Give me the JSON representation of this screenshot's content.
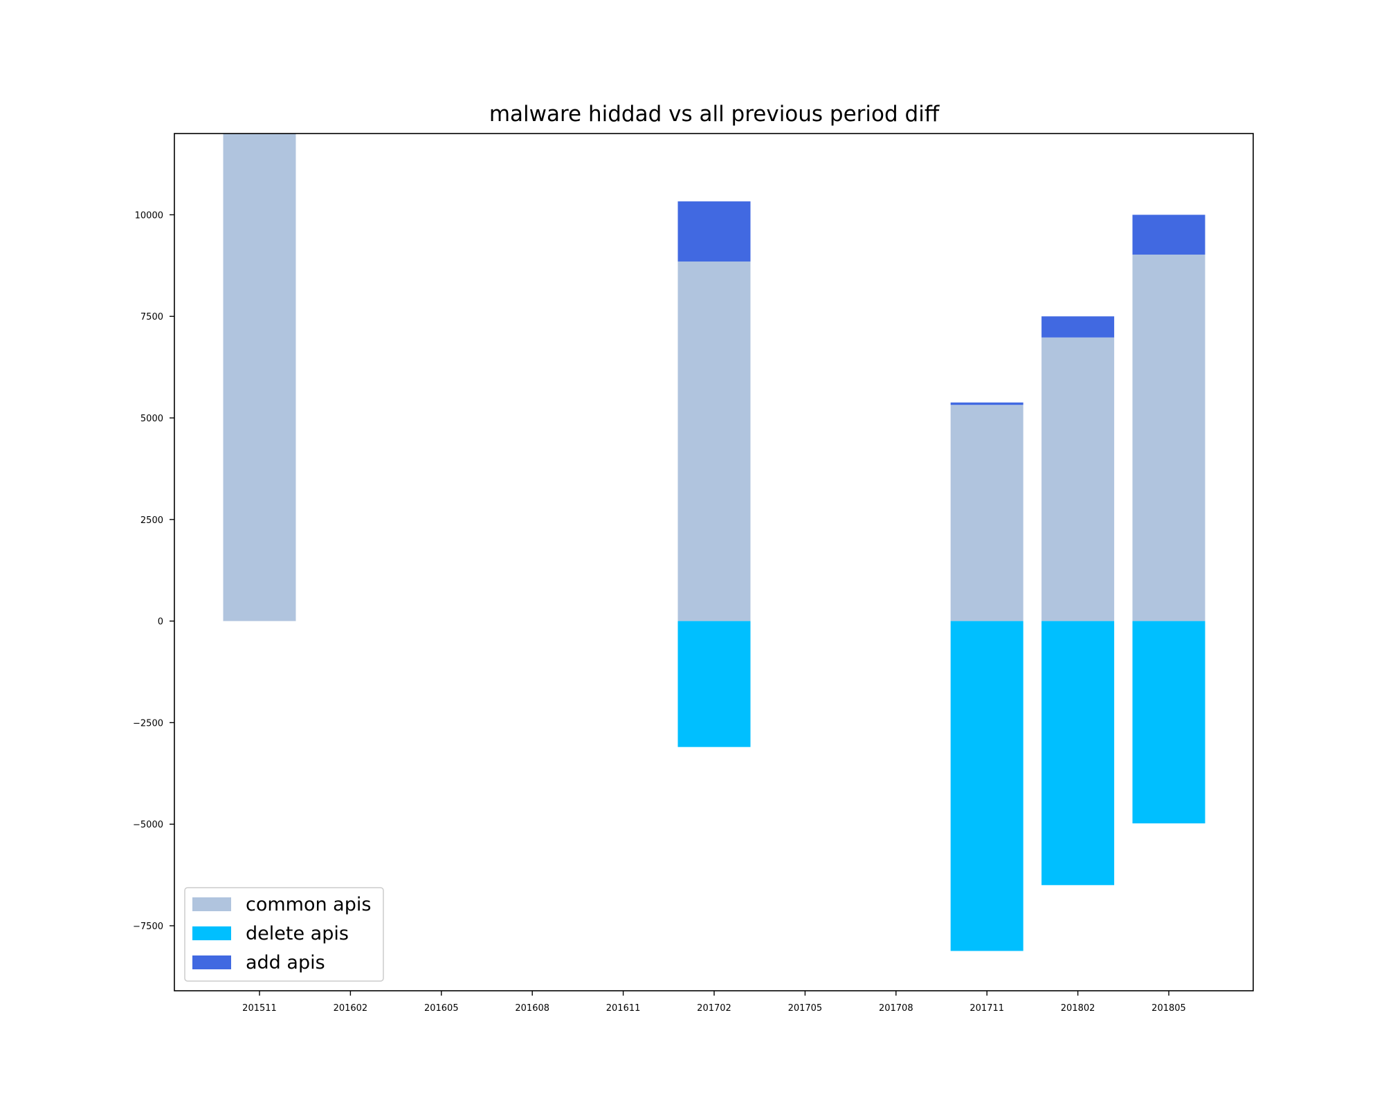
{
  "chart_data": {
    "type": "bar",
    "stacked": true,
    "title": "malware hiddad vs all previous period diff",
    "xlabel": "",
    "ylabel": "",
    "categories": [
      "201511",
      "201602",
      "201605",
      "201608",
      "201611",
      "201702",
      "201705",
      "201708",
      "201711",
      "201802",
      "201805"
    ],
    "ylim": [
      -9100,
      12000
    ],
    "yticks": [
      -7500,
      -5000,
      -2500,
      0,
      2500,
      5000,
      7500,
      10000
    ],
    "ytick_labels": [
      "−7500",
      "−5000",
      "−2500",
      "0",
      "2500",
      "5000",
      "7500",
      "10000"
    ],
    "grid": false,
    "legend_position": "lower-left",
    "series": [
      {
        "name": "common apis",
        "color": "#b0c4de",
        "values": [
          12000,
          0,
          0,
          0,
          0,
          8850,
          0,
          0,
          5320,
          6980,
          9020
        ]
      },
      {
        "name": "delete apis",
        "color": "#00bfff",
        "values": [
          0,
          0,
          0,
          0,
          0,
          -3100,
          0,
          0,
          -8120,
          -6500,
          -4980
        ]
      },
      {
        "name": "add apis",
        "color": "#4169e1",
        "values": [
          0,
          0,
          0,
          0,
          0,
          1480,
          0,
          0,
          60,
          520,
          980
        ]
      }
    ]
  }
}
